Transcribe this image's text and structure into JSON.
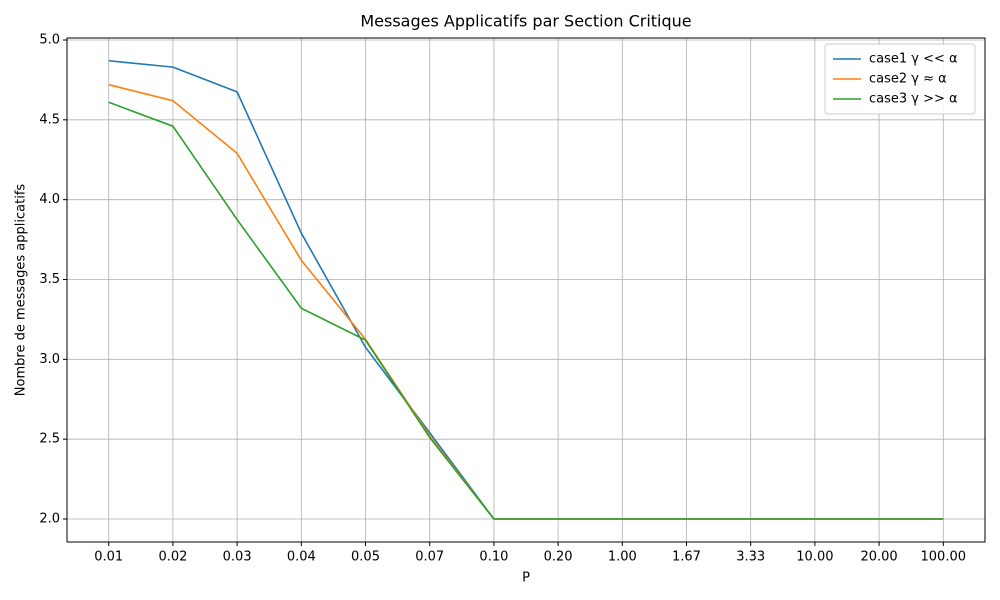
{
  "chart_data": {
    "type": "line",
    "title": "Messages Applicatifs par Section Critique",
    "x_label": "P",
    "y_label": "Nombre de messages applicatifs",
    "categories": [
      "0.01",
      "0.02",
      "0.03",
      "0.04",
      "0.05",
      "0.07",
      "0.10",
      "0.20",
      "1.00",
      "1.67",
      "3.33",
      "10.00",
      "20.00",
      "100.00"
    ],
    "series": [
      {
        "name": "case1 γ << α",
        "color": "#1f77b4",
        "values": [
          4.87,
          4.83,
          4.675,
          3.79,
          3.075,
          2.54,
          2.0,
          2.0,
          2.0,
          2.0,
          2.0,
          2.0,
          2.0,
          2.0
        ]
      },
      {
        "name": "case2 γ ≈ α",
        "color": "#ff7f0e",
        "values": [
          4.72,
          4.62,
          4.29,
          3.62,
          3.125,
          2.52,
          2.0,
          2.0,
          2.0,
          2.0,
          2.0,
          2.0,
          2.0,
          2.0
        ]
      },
      {
        "name": "case3 γ >> α",
        "color": "#2ca02c",
        "values": [
          4.61,
          4.46,
          3.875,
          3.32,
          3.12,
          2.51,
          2.0,
          2.0,
          2.0,
          2.0,
          2.0,
          2.0,
          2.0,
          2.0
        ]
      }
    ],
    "ylim": [
      1.856,
      5.0125
    ],
    "yticks": [
      {
        "value": 2,
        "label": "2.0"
      },
      2.5,
      {
        "value": 3,
        "label": "3.0"
      },
      3.5,
      {
        "value": 4,
        "label": "4.0"
      },
      4.5,
      {
        "value": 5,
        "label": "5.0"
      }
    ],
    "grid": true,
    "legend": "upper right"
  }
}
